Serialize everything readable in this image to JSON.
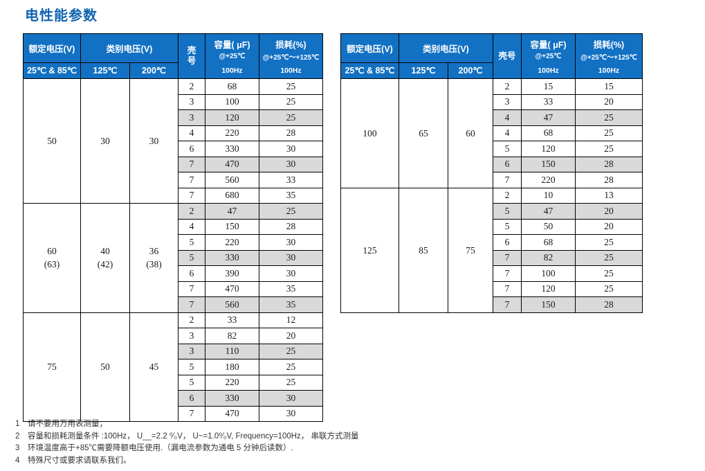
{
  "title": "电性能参数",
  "colors": {
    "header_bg": "#1271C3",
    "gray_row": "#D9D9D9",
    "title_blue": "#1163B2",
    "border": "#000000"
  },
  "header": {
    "rated_voltage": "额定电压(V)",
    "rated_sub": "25℃ & 85℃",
    "category_voltage": "类别电压(V)",
    "category_sub_125": "125℃",
    "category_sub_200": "200℃",
    "capacity_lines": [
      "容量( μF)",
      "@+25℃",
      "100Hz"
    ],
    "loss_lines": [
      "损耗(%)",
      "@+25℃～+125℃",
      "100Hz"
    ]
  },
  "tables": [
    {
      "name": "left",
      "shell_header_chars": [
        "壳",
        "号"
      ],
      "shell_vertical": true,
      "groups": [
        {
          "rated": [
            "50"
          ],
          "v125": [
            "30"
          ],
          "v200": [
            "30"
          ],
          "rows": [
            {
              "shell": "2",
              "cap": "68",
              "loss": "25",
              "gray": false
            },
            {
              "shell": "3",
              "cap": "100",
              "loss": "25",
              "gray": false
            },
            {
              "shell": "3",
              "cap": "120",
              "loss": "25",
              "gray": true
            },
            {
              "shell": "4",
              "cap": "220",
              "loss": "28",
              "gray": false
            },
            {
              "shell": "6",
              "cap": "330",
              "loss": "30",
              "gray": false
            },
            {
              "shell": "7",
              "cap": "470",
              "loss": "30",
              "gray": true
            },
            {
              "shell": "7",
              "cap": "560",
              "loss": "33",
              "gray": false
            },
            {
              "shell": "7",
              "cap": "680",
              "loss": "35",
              "gray": false
            }
          ]
        },
        {
          "rated": [
            "60",
            "(63)"
          ],
          "v125": [
            "40",
            "(42)"
          ],
          "v200": [
            "36",
            "(38)"
          ],
          "rows": [
            {
              "shell": "2",
              "cap": "47",
              "loss": "25",
              "gray": true
            },
            {
              "shell": "4",
              "cap": "150",
              "loss": "28",
              "gray": false
            },
            {
              "shell": "5",
              "cap": "220",
              "loss": "30",
              "gray": false
            },
            {
              "shell": "5",
              "cap": "330",
              "loss": "30",
              "gray": true
            },
            {
              "shell": "6",
              "cap": "390",
              "loss": "30",
              "gray": false
            },
            {
              "shell": "7",
              "cap": "470",
              "loss": "35",
              "gray": false
            },
            {
              "shell": "7",
              "cap": "560",
              "loss": "35",
              "gray": true
            }
          ]
        },
        {
          "rated": [
            "75"
          ],
          "v125": [
            "50"
          ],
          "v200": [
            "45"
          ],
          "rows": [
            {
              "shell": "2",
              "cap": "33",
              "loss": "12",
              "gray": false
            },
            {
              "shell": "3",
              "cap": "82",
              "loss": "20",
              "gray": false
            },
            {
              "shell": "3",
              "cap": "110",
              "loss": "25",
              "gray": true
            },
            {
              "shell": "5",
              "cap": "180",
              "loss": "25",
              "gray": false
            },
            {
              "shell": "5",
              "cap": "220",
              "loss": "25",
              "gray": false
            },
            {
              "shell": "6",
              "cap": "330",
              "loss": "30",
              "gray": true
            },
            {
              "shell": "7",
              "cap": "470",
              "loss": "30",
              "gray": false
            }
          ]
        }
      ]
    },
    {
      "name": "right",
      "shell_header_chars": [
        "壳号"
      ],
      "shell_vertical": false,
      "groups": [
        {
          "rated": [
            "100"
          ],
          "v125": [
            "65"
          ],
          "v200": [
            "60"
          ],
          "rows": [
            {
              "shell": "2",
              "cap": "15",
              "loss": "15",
              "gray": false
            },
            {
              "shell": "3",
              "cap": "33",
              "loss": "20",
              "gray": false
            },
            {
              "shell": "4",
              "cap": "47",
              "loss": "25",
              "gray": true
            },
            {
              "shell": "4",
              "cap": "68",
              "loss": "25",
              "gray": false
            },
            {
              "shell": "5",
              "cap": "120",
              "loss": "25",
              "gray": false
            },
            {
              "shell": "6",
              "cap": "150",
              "loss": "28",
              "gray": true
            },
            {
              "shell": "7",
              "cap": "220",
              "loss": "28",
              "gray": false
            }
          ]
        },
        {
          "rated": [
            "125"
          ],
          "v125": [
            "85"
          ],
          "v200": [
            "75"
          ],
          "rows": [
            {
              "shell": "2",
              "cap": "10",
              "loss": "13",
              "gray": false
            },
            {
              "shell": "5",
              "cap": "47",
              "loss": "20",
              "gray": true
            },
            {
              "shell": "5",
              "cap": "50",
              "loss": "20",
              "gray": false
            },
            {
              "shell": "6",
              "cap": "68",
              "loss": "25",
              "gray": false
            },
            {
              "shell": "7",
              "cap": "82",
              "loss": "25",
              "gray": true
            },
            {
              "shell": "7",
              "cap": "100",
              "loss": "25",
              "gray": false
            },
            {
              "shell": "7",
              "cap": "120",
              "loss": "25",
              "gray": false
            },
            {
              "shell": "7",
              "cap": "150",
              "loss": "28",
              "gray": true
            }
          ]
        }
      ]
    }
  ],
  "notes": [
    {
      "num": "1",
      "text": "请不要用万用表测量；"
    },
    {
      "num": "2",
      "text": "容量和损耗测量条件 :100Hz， U__=2.2 ⁰⁄₀V， U~=1.0⁰⁄₀V, Frequency=100Hz， 串联方式测量"
    },
    {
      "num": "3",
      "text": "环境温度高于+85℃需要降额电压使用.（漏电流参数为通电 5 分钟后读数）."
    },
    {
      "num": "4",
      "text": "特殊尺寸或要求请联系我们。"
    }
  ]
}
